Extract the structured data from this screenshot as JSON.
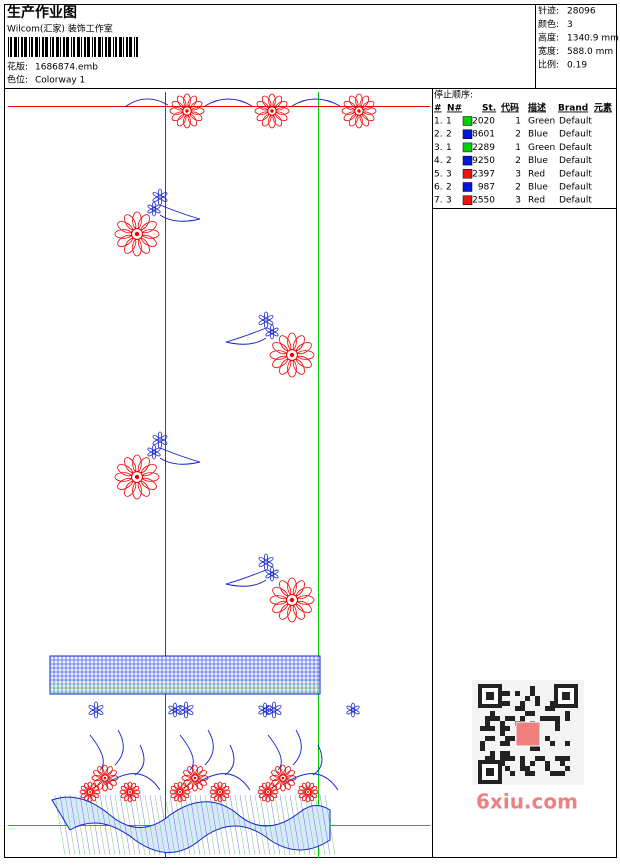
{
  "header": {
    "title": "生产作业图",
    "subtitle": "Wilcom(汇家) 装饰工作室",
    "file_label": "花版:",
    "file": "1686874.emb",
    "colorway_label": "色位:",
    "colorway": "Colorway 1",
    "stats": [
      {
        "label": "针迹:",
        "value": "28096"
      },
      {
        "label": "颜色:",
        "value": "3"
      },
      {
        "label": "高度:",
        "value": "1340.9 mm"
      },
      {
        "label": "宽度:",
        "value": "588.0 mm"
      },
      {
        "label": "比例:",
        "value": "0.19"
      }
    ]
  },
  "table": {
    "title": "停止顺序:",
    "columns": [
      "#",
      "N#",
      "St.",
      "代码",
      "描述",
      "Brand",
      "元素"
    ],
    "rows": [
      {
        "no": "1.",
        "n": 1,
        "color": "#00d000",
        "st": 2020,
        "code": 1,
        "desc": "Green",
        "brand": "Default"
      },
      {
        "no": "2.",
        "n": 2,
        "color": "#0018d8",
        "st": 8601,
        "code": 2,
        "desc": "Blue",
        "brand": "Default"
      },
      {
        "no": "3.",
        "n": 1,
        "color": "#00d000",
        "st": 2289,
        "code": 1,
        "desc": "Green",
        "brand": "Default"
      },
      {
        "no": "4.",
        "n": 2,
        "color": "#0018d8",
        "st": 9250,
        "code": 2,
        "desc": "Blue",
        "brand": "Default"
      },
      {
        "no": "5.",
        "n": 3,
        "color": "#f01010",
        "st": 2397,
        "code": 3,
        "desc": "Red",
        "brand": "Default"
      },
      {
        "no": "6.",
        "n": 2,
        "color": "#0018d8",
        "st": 987,
        "code": 2,
        "desc": "Blue",
        "brand": "Default"
      },
      {
        "no": "7.",
        "n": 3,
        "color": "#f01010",
        "st": 2550,
        "code": 3,
        "desc": "Red",
        "brand": "Default"
      }
    ]
  },
  "watermark": "6xiu.com"
}
